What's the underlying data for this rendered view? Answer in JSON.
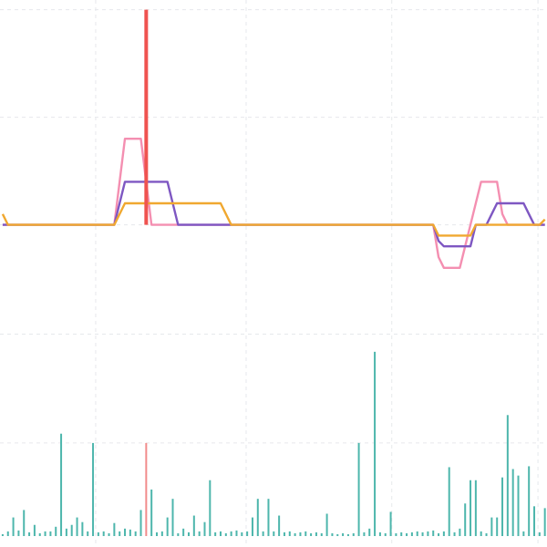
{
  "chart_data": [
    {
      "type": "line",
      "xlim": [
        -0.5,
        102.4
      ],
      "xticks": [
        17.5,
        45.8,
        73.2,
        100.7
      ],
      "ylim": [
        -0.8,
        2.09
      ],
      "yticks": [
        0,
        1,
        2
      ],
      "grid": true,
      "series": [
        {
          "color": "#f48fb1",
          "values": [
            0,
            0,
            0,
            0,
            0,
            0,
            0,
            0,
            0,
            0,
            0,
            0,
            0,
            0,
            0,
            0,
            0,
            0,
            0,
            0,
            0,
            0,
            0.4,
            0.8,
            0.8,
            0.8,
            0.8,
            0.4,
            0,
            0,
            0,
            0,
            0,
            0,
            0,
            0,
            0,
            0,
            0,
            0,
            0,
            0,
            0,
            0,
            0,
            0,
            0,
            0,
            0,
            0,
            0,
            0,
            0,
            0,
            0,
            0,
            0,
            0,
            0,
            0,
            0,
            0,
            0,
            0,
            0,
            0,
            0,
            0,
            0,
            0,
            0,
            0,
            0,
            0,
            0,
            0,
            0,
            0,
            0,
            0,
            0,
            0,
            -0.3,
            -0.4,
            -0.4,
            -0.4,
            -0.4,
            -0.2,
            0,
            0.2,
            0.4,
            0.4,
            0.4,
            0.4,
            0.1,
            0,
            0,
            0,
            0,
            0,
            0,
            0,
            0
          ]
        },
        {
          "color": "#7e57c2",
          "values": [
            0,
            0,
            0,
            0,
            0,
            0,
            0,
            0,
            0,
            0,
            0,
            0,
            0,
            0,
            0,
            0,
            0,
            0,
            0,
            0,
            0,
            0,
            0.2,
            0.4,
            0.4,
            0.4,
            0.4,
            0.4,
            0.4,
            0.4,
            0.4,
            0.4,
            0.2,
            0,
            0,
            0,
            0,
            0,
            0,
            0,
            0,
            0,
            0,
            0,
            0,
            0,
            0,
            0,
            0,
            0,
            0,
            0,
            0,
            0,
            0,
            0,
            0,
            0,
            0,
            0,
            0,
            0,
            0,
            0,
            0,
            0,
            0,
            0,
            0,
            0,
            0,
            0,
            0,
            0,
            0,
            0,
            0,
            0,
            0,
            0,
            0,
            0,
            -0.15,
            -0.2,
            -0.2,
            -0.2,
            -0.2,
            -0.2,
            -0.2,
            0,
            0,
            0,
            0.1,
            0.2,
            0.2,
            0.2,
            0.2,
            0.2,
            0.2,
            0.1,
            0,
            0,
            0
          ]
        },
        {
          "color": "#f0a830",
          "values": [
            0.1,
            0,
            0,
            0,
            0,
            0,
            0,
            0,
            0,
            0,
            0,
            0,
            0,
            0,
            0,
            0,
            0,
            0,
            0,
            0,
            0,
            0,
            0.1,
            0.2,
            0.2,
            0.2,
            0.2,
            0.2,
            0.2,
            0.2,
            0.2,
            0.2,
            0.2,
            0.2,
            0.2,
            0.2,
            0.2,
            0.2,
            0.2,
            0.2,
            0.2,
            0.2,
            0.1,
            0,
            0,
            0,
            0,
            0,
            0,
            0,
            0,
            0,
            0,
            0,
            0,
            0,
            0,
            0,
            0,
            0,
            0,
            0,
            0,
            0,
            0,
            0,
            0,
            0,
            0,
            0,
            0,
            0,
            0,
            0,
            0,
            0,
            0,
            0,
            0,
            0,
            0,
            0,
            -0.1,
            -0.1,
            -0.1,
            -0.1,
            -0.1,
            -0.1,
            -0.1,
            0,
            0,
            0,
            0,
            0,
            0,
            0,
            0,
            0,
            0,
            0,
            0,
            0,
            0.05
          ]
        },
        {
          "type": "bar",
          "color": "#ef5350",
          "values": [
            null,
            null,
            null,
            null,
            null,
            null,
            null,
            null,
            null,
            null,
            null,
            null,
            null,
            null,
            null,
            null,
            null,
            null,
            null,
            null,
            null,
            null,
            null,
            null,
            null,
            null,
            null,
            2,
            null,
            null,
            null,
            null,
            null,
            null,
            null,
            null,
            null,
            null,
            null,
            null,
            null,
            null,
            null,
            null,
            null,
            null,
            null,
            null,
            null,
            null,
            null,
            null,
            null,
            null,
            null,
            null,
            null,
            null,
            null,
            null,
            null,
            null,
            null,
            null,
            null,
            null,
            null,
            null,
            null,
            null,
            null,
            null,
            null,
            null,
            null,
            null,
            null,
            null,
            null,
            null,
            null,
            null,
            null,
            null,
            null,
            null,
            null,
            null,
            null,
            null,
            null,
            null,
            null,
            null,
            null,
            null,
            null,
            null,
            null,
            null,
            null,
            null,
            null
          ]
        }
      ]
    },
    {
      "type": "bar",
      "xlim": [
        -0.5,
        102.4
      ],
      "ylim": [
        0,
        2.4
      ],
      "yticks": [
        1,
        2.17
      ],
      "grid": true,
      "series": [
        {
          "color": "#4db6ac",
          "values": [
            0.02,
            0.05,
            0.2,
            0.06,
            0.28,
            0.04,
            0.12,
            0.03,
            0.05,
            0.05,
            0.1,
            1.1,
            0.08,
            0.12,
            0.2,
            0.15,
            0.05,
            1.0,
            0.04,
            0.05,
            0.03,
            0.14,
            0.05,
            0.08,
            0.07,
            0.05,
            0.28,
            null,
            0.5,
            0.04,
            0.05,
            0.2,
            0.4,
            0.03,
            0.08,
            0.04,
            0.22,
            0.05,
            0.15,
            0.6,
            0.04,
            0.05,
            0.03,
            0.05,
            0.06,
            0.04,
            0.05,
            0.2,
            0.4,
            0.05,
            0.4,
            0.05,
            0.22,
            0.04,
            0.05,
            0.03,
            0.04,
            0.05,
            0.03,
            0.04,
            0.03,
            0.24,
            0.03,
            0.02,
            0.03,
            0.02,
            0.03,
            1.0,
            0.04,
            0.08,
            1.98,
            0.04,
            0.03,
            0.26,
            0.03,
            0.04,
            0.03,
            0.04,
            0.05,
            0.04,
            0.05,
            0.06,
            0.03,
            0.05,
            0.74,
            0.04,
            0.08,
            0.35,
            0.6,
            0.6,
            0.05,
            0.03,
            0.2,
            0.2,
            0.63,
            1.3,
            0.72,
            0.65,
            0.05,
            0.75,
            0.32,
            0.04,
            0.3
          ]
        },
        {
          "color": "#f28b8b",
          "values": [
            null,
            null,
            null,
            null,
            null,
            null,
            null,
            null,
            null,
            null,
            null,
            null,
            null,
            null,
            null,
            null,
            null,
            null,
            null,
            null,
            null,
            null,
            null,
            null,
            null,
            null,
            null,
            1.0,
            null,
            null,
            null,
            null,
            null,
            null,
            null,
            null,
            null,
            null,
            null,
            null,
            null,
            null,
            null,
            null,
            null,
            null,
            null,
            null,
            null,
            null,
            null,
            null,
            null,
            null,
            null,
            null,
            null,
            null,
            null,
            null,
            null,
            null,
            null,
            null,
            null,
            null,
            null,
            null,
            null,
            null,
            null,
            null,
            null,
            null,
            null,
            null,
            null,
            null,
            null,
            null,
            null,
            null,
            null,
            null,
            null,
            null,
            null,
            null,
            null,
            null,
            null,
            null,
            null,
            null,
            null,
            null,
            null,
            null,
            null,
            null,
            null,
            null,
            null
          ]
        }
      ]
    }
  ]
}
